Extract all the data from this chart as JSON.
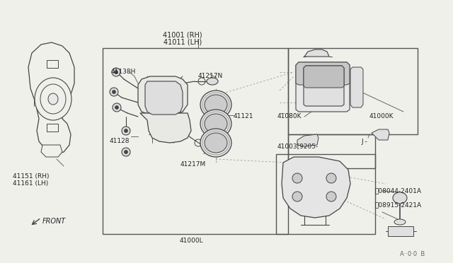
{
  "bg_color": "#f0f0eb",
  "line_color": "#444444",
  "light_line": "#888888",
  "labels": {
    "top_label": "41001 (RH)\n41011 (LH)",
    "lbl_41138H": "41138H",
    "lbl_41217N": "41217N",
    "lbl_41121": "41121",
    "lbl_41128": "41128",
    "lbl_41217M": "41217M",
    "lbl_41000L": "41000L",
    "lbl_41080K": "41080K",
    "lbl_41000K": "41000K",
    "lbl_41003": "41003[9205-",
    "lbl_J": "J -",
    "lbl_41151": "41151 (RH)\n41161 (LH)",
    "lbl_B": "⒲08044-2401A",
    "lbl_V": "Ⓥ08915-2421A",
    "lbl_FRONT": "FRONT",
    "lbl_code": "A··0·0  B"
  }
}
